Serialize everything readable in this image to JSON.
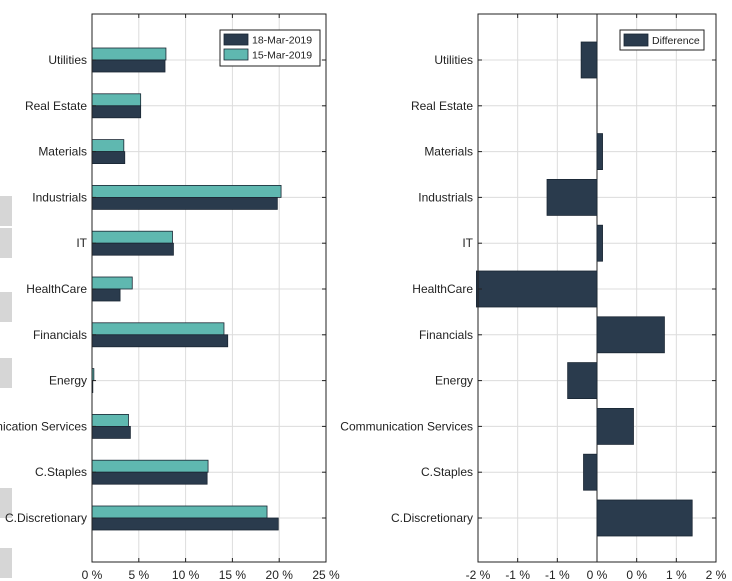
{
  "colors": {
    "series_dark": "#2a3b4d",
    "series_teal": "#5fb8b0",
    "difference": "#2a3b4d"
  },
  "chart_data": [
    {
      "type": "bar",
      "orientation": "horizontal",
      "categories": [
        "Utilities",
        "Real Estate",
        "Materials",
        "Industrials",
        "IT",
        "HealthCare",
        "Financials",
        "Energy",
        "nication Services",
        "C.Staples",
        "C.Discretionary"
      ],
      "series": [
        {
          "name": "18-Mar-2019",
          "values": [
            7.8,
            5.2,
            3.5,
            19.8,
            8.7,
            3.0,
            14.5,
            0.0,
            4.1,
            12.3,
            19.9
          ]
        },
        {
          "name": "15-Mar-2019",
          "values": [
            7.9,
            5.2,
            3.4,
            20.2,
            8.6,
            4.3,
            14.1,
            0.2,
            3.9,
            12.4,
            18.7
          ]
        }
      ],
      "xlim": [
        0,
        25
      ],
      "xticks": [
        0,
        5,
        10,
        15,
        20,
        25
      ],
      "xtick_labels": [
        "0 %",
        "5 %",
        "10 %",
        "15 %",
        "20 %",
        "25 %"
      ],
      "title": "",
      "xlabel": "",
      "ylabel": "",
      "grid": true,
      "legend": "top-right"
    },
    {
      "type": "bar",
      "orientation": "horizontal",
      "categories": [
        "Utilities",
        "Real Estate",
        "Materials",
        "Industrials",
        "IT",
        "HealthCare",
        "Financials",
        "Energy",
        "Communication Services",
        "C.Staples",
        "C.Discretionary"
      ],
      "series": [
        {
          "name": "Difference",
          "values": [
            -0.2,
            0.0,
            0.07,
            -0.63,
            0.07,
            -1.52,
            0.85,
            -0.37,
            0.46,
            -0.17,
            1.2
          ]
        }
      ],
      "xlim": [
        -1.5,
        1.5
      ],
      "xticks": [
        -1.5,
        -1.0,
        -0.5,
        0.0,
        0.5,
        1.0,
        1.5
      ],
      "xtick_labels": [
        "-2 %",
        "-1 %",
        "-1 %",
        "0 %",
        "0 %",
        "1 %",
        "2 %"
      ],
      "title": "",
      "xlabel": "",
      "ylabel": "",
      "grid": true,
      "legend": "top-right"
    }
  ]
}
